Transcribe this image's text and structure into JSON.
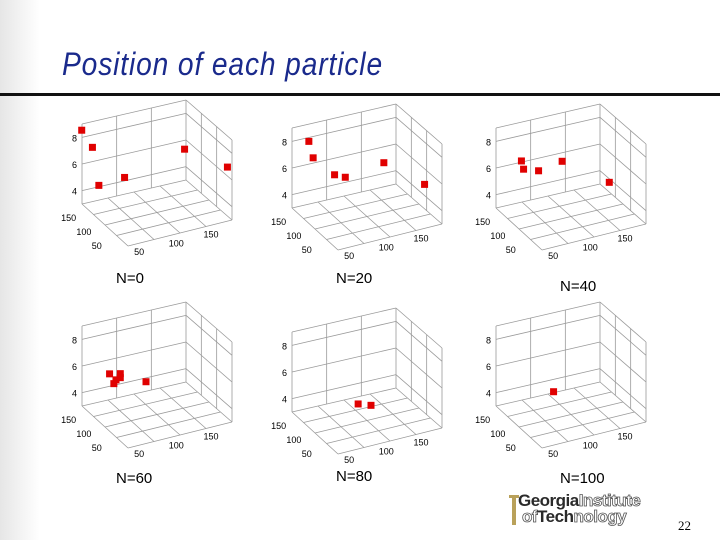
{
  "slide": {
    "title": "Position of each particle",
    "page_number": "22"
  },
  "axis_labels": {
    "z_ticks": [
      "8",
      "6",
      "4"
    ],
    "x_ticks": [
      "150",
      "100",
      "50"
    ],
    "y_ticks": [
      "50",
      "100",
      "150"
    ]
  },
  "panels": [
    {
      "caption": "N=0",
      "points": [
        [
          -0.2,
          0,
          8.2
        ],
        [
          0.3,
          0,
          7.0
        ],
        [
          0.6,
          0,
          4.2
        ],
        [
          1.8,
          0,
          5.0
        ],
        [
          4.6,
          0,
          7.6
        ],
        [
          6.6,
          0,
          6.6
        ]
      ]
    },
    {
      "caption": "N=20",
      "points": [
        [
          0.6,
          0,
          7.8
        ],
        [
          0.8,
          0,
          6.6
        ],
        [
          1.8,
          0,
          5.5
        ],
        [
          2.3,
          0,
          5.4
        ],
        [
          4.1,
          0,
          6.8
        ],
        [
          6.0,
          0,
          5.5
        ]
      ]
    },
    {
      "caption": "N=40",
      "points": [
        [
          1.0,
          0,
          6.4
        ],
        [
          1.1,
          0,
          5.8
        ],
        [
          1.8,
          0,
          5.8
        ],
        [
          2.9,
          0,
          6.7
        ],
        [
          5.1,
          0,
          5.5
        ]
      ]
    },
    {
      "caption": "N=60",
      "points": [
        [
          1.1,
          0,
          5.3
        ],
        [
          1.6,
          0,
          5.4
        ],
        [
          1.6,
          0,
          5.1
        ],
        [
          1.4,
          0,
          4.9
        ],
        [
          1.3,
          0,
          4.6
        ],
        [
          2.8,
          0,
          5.0
        ]
      ]
    },
    {
      "caption": "N=80",
      "points": [
        [
          2.9,
          0,
          3.8
        ],
        [
          3.5,
          0,
          3.8
        ]
      ]
    },
    {
      "caption": "N=100",
      "points": [
        [
          2.5,
          0,
          4.2
        ]
      ]
    }
  ],
  "logo": {
    "word1_dark": "Georgia",
    "word1_light": "Institute",
    "word2_dark": "of",
    "word2_dark2": "Tech",
    "word2_light": "nology"
  },
  "colors": {
    "title": "#1a2a8c",
    "marker": "#e00000",
    "grid": "#9a9a9a"
  }
}
